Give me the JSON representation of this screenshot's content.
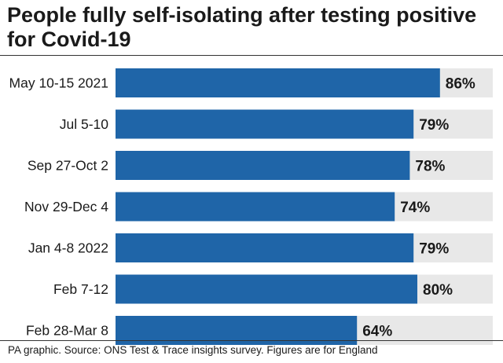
{
  "chart_data": {
    "type": "bar",
    "orientation": "horizontal",
    "title": "People fully self-isolating after testing positive for Covid-19",
    "categories": [
      "May 10-15 2021",
      "Jul 5-10",
      "Sep 27-Oct 2",
      "Nov 29-Dec 4",
      "Jan 4-8 2022",
      "Feb 7-12",
      "Feb 28-Mar 8"
    ],
    "values": [
      86,
      79,
      78,
      74,
      79,
      80,
      64
    ],
    "value_labels": [
      "86%",
      "79%",
      "78%",
      "74%",
      "79%",
      "80%",
      "64%"
    ],
    "xlim": [
      0,
      100
    ],
    "xlabel": "",
    "ylabel": "",
    "grid": false,
    "footer": "PA graphic. Source: ONS Test & Trace insights survey. Figures are for England"
  },
  "colors": {
    "bar": "#1f65a8",
    "track": "#e8e8e8",
    "text": "#1a1a1a"
  }
}
